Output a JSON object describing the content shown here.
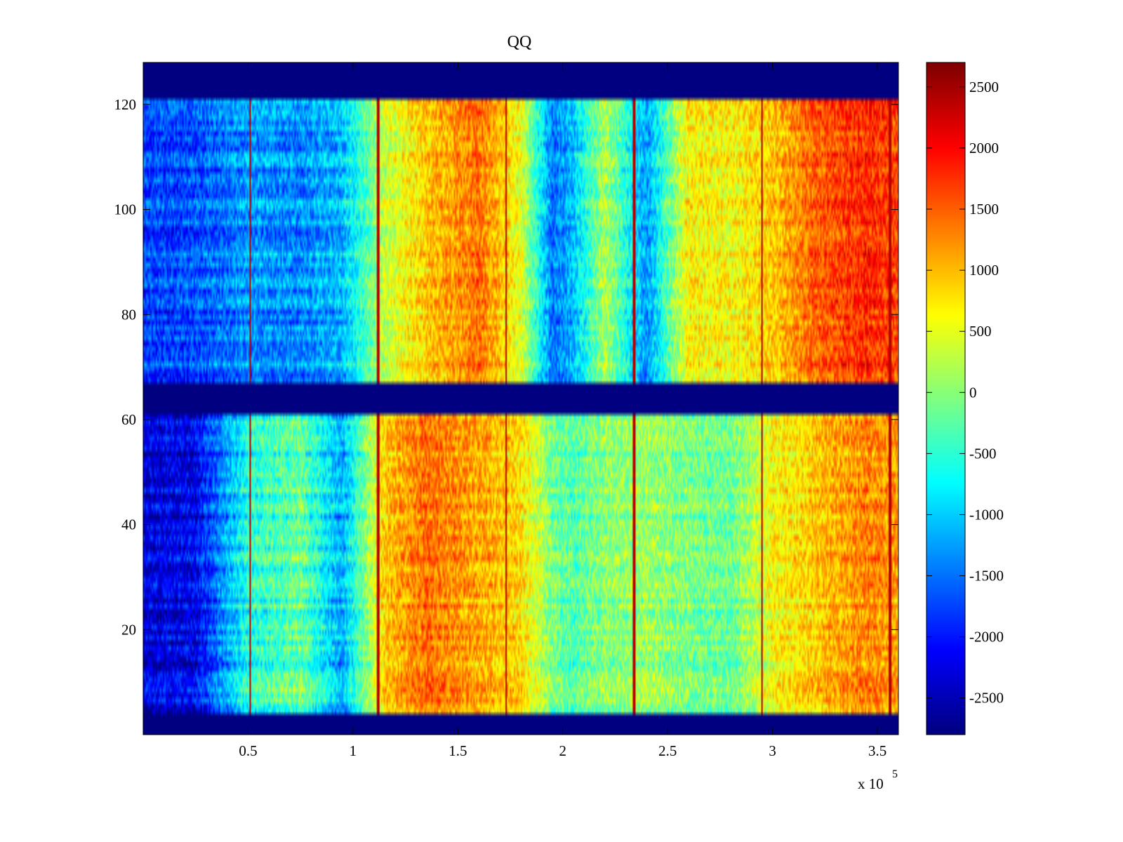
{
  "chart_data": {
    "type": "heatmap",
    "title": "QQ",
    "xlabel": "",
    "ylabel": "",
    "x_multiplier_label": {
      "base": "x 10",
      "exponent": "5"
    },
    "xlim": [
      0,
      3.6
    ],
    "ylim": [
      0,
      128
    ],
    "x_ticks": [
      0.5,
      1,
      1.5,
      2,
      2.5,
      3,
      3.5
    ],
    "x_tick_labels": [
      "0.5",
      "1",
      "1.5",
      "2",
      "2.5",
      "3",
      "3.5"
    ],
    "y_ticks": [
      20,
      40,
      60,
      80,
      100,
      120
    ],
    "y_tick_labels": [
      "20",
      "40",
      "60",
      "80",
      "100",
      "120"
    ],
    "colormap": "jet",
    "clim": [
      -2800,
      2700
    ],
    "colorbar_ticks": [
      2500,
      2000,
      1500,
      1000,
      500,
      0,
      -500,
      -1000,
      -1500,
      -2000,
      -2500
    ],
    "colorbar_tick_labels": [
      "2500",
      "2000",
      "1500",
      "1000",
      "500",
      "0",
      "-500",
      "-1000",
      "-1500",
      "-2000",
      "-2500"
    ],
    "empty_row_bands": [
      [
        0,
        4
      ],
      [
        61,
        67
      ],
      [
        121,
        128
      ]
    ],
    "vertical_stripe_x": [
      0.51,
      1.12,
      1.73,
      2.34,
      2.95,
      3.56
    ],
    "column_profile_top_half": {
      "x": [
        0,
        0.25,
        0.5,
        0.75,
        0.95,
        1.15,
        1.35,
        1.6,
        1.8,
        1.95,
        2.05,
        2.2,
        2.4,
        2.6,
        2.8,
        3.0,
        3.2,
        3.45,
        3.6
      ],
      "values": [
        -1800,
        -1700,
        -1300,
        -1400,
        -1100,
        300,
        900,
        1400,
        500,
        -1500,
        -1100,
        200,
        -1300,
        700,
        600,
        900,
        1500,
        1800,
        1600
      ]
    },
    "column_profile_bottom_half": {
      "x": [
        0,
        0.25,
        0.5,
        0.75,
        0.95,
        1.15,
        1.35,
        1.6,
        1.8,
        1.95,
        2.05,
        2.2,
        2.4,
        2.6,
        2.8,
        3.0,
        3.2,
        3.45,
        3.6
      ],
      "values": [
        -2300,
        -2200,
        -600,
        -200,
        -1200,
        900,
        1400,
        1100,
        800,
        -100,
        -300,
        0,
        100,
        -100,
        -200,
        600,
        900,
        1300,
        1100
      ]
    },
    "colors": {
      "low": "#00008f",
      "high": "#800000"
    }
  }
}
